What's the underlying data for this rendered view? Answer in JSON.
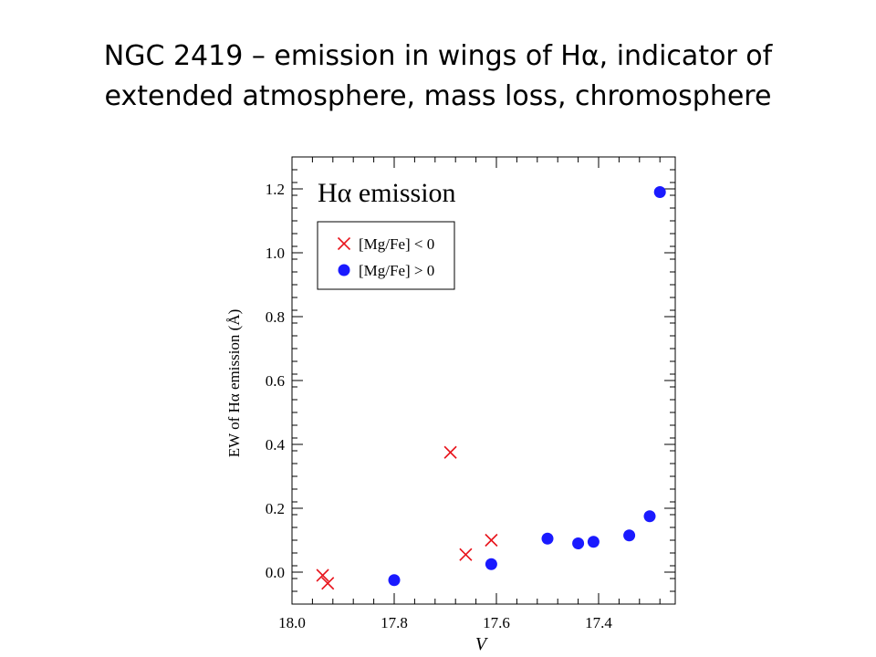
{
  "slide": {
    "title_line1": "NGC 2419 – emission in wings of Hα, indicator of",
    "title_line2": "extended atmosphere, mass loss, chromosphere"
  },
  "chart_data": {
    "type": "scatter",
    "title": "Hα emission",
    "xlabel": "V",
    "ylabel": "EW of Hα emission (Å)",
    "xlim": [
      18.0,
      17.25
    ],
    "ylim": [
      -0.1,
      1.3
    ],
    "x_reversed": true,
    "x_ticks": [
      18.0,
      17.8,
      17.6,
      17.4
    ],
    "x_tick_labels": [
      "18.0",
      "17.8",
      "17.6",
      "17.4"
    ],
    "y_ticks": [
      0.0,
      0.2,
      0.4,
      0.6,
      0.8,
      1.0,
      1.2
    ],
    "y_tick_labels": [
      "0.0",
      "0.2",
      "0.4",
      "0.6",
      "0.8",
      "1.0",
      "1.2"
    ],
    "grid": false,
    "legend_position": "top-left",
    "series": [
      {
        "name": "[Mg/Fe] < 0",
        "marker": "x",
        "color": "#e8141c",
        "points": [
          [
            17.94,
            -0.01
          ],
          [
            17.93,
            -0.035
          ],
          [
            17.69,
            0.375
          ],
          [
            17.66,
            0.055
          ],
          [
            17.61,
            0.1
          ]
        ]
      },
      {
        "name": "[Mg/Fe] > 0",
        "marker": "circle",
        "color": "#1a1aff",
        "points": [
          [
            17.8,
            -0.025
          ],
          [
            17.61,
            0.025
          ],
          [
            17.5,
            0.105
          ],
          [
            17.44,
            0.09
          ],
          [
            17.41,
            0.095
          ],
          [
            17.34,
            0.115
          ],
          [
            17.3,
            0.175
          ],
          [
            17.28,
            1.19
          ]
        ]
      }
    ]
  }
}
